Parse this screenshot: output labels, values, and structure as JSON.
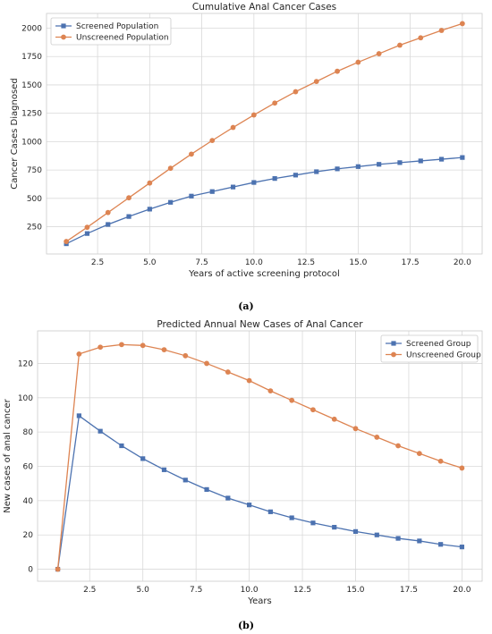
{
  "chart_data": [
    {
      "type": "line",
      "title": "Cumulative Anal Cancer Cases",
      "xlabel": "Years of active screening protocol",
      "ylabel": "Cancer Cases Diagnosed",
      "xlim": [
        0.05,
        20.95
      ],
      "ylim": [
        10,
        2130
      ],
      "xticks": [
        2.5,
        5.0,
        7.5,
        10.0,
        12.5,
        15.0,
        17.5,
        20.0
      ],
      "xtick_labels": [
        "2.5",
        "5.0",
        "7.5",
        "10.0",
        "12.5",
        "15.0",
        "17.5",
        "20.0"
      ],
      "yticks": [
        250,
        500,
        750,
        1000,
        1250,
        1500,
        1750,
        2000
      ],
      "ytick_labels": [
        "250",
        "500",
        "750",
        "1000",
        "1250",
        "1500",
        "1750",
        "2000"
      ],
      "grid": true,
      "legend_position": "top-left",
      "caption": "(a)",
      "x": [
        1,
        2,
        3,
        4,
        5,
        6,
        7,
        8,
        9,
        10,
        11,
        12,
        13,
        14,
        15,
        16,
        17,
        18,
        19,
        20
      ],
      "series": [
        {
          "name": "Screened Population",
          "color": "#4c72b0",
          "marker": "square",
          "values": [
            100,
            190,
            270,
            340,
            405,
            465,
            520,
            560,
            600,
            640,
            675,
            705,
            735,
            760,
            780,
            800,
            815,
            830,
            845,
            860
          ]
        },
        {
          "name": "Unscreened Population",
          "color": "#dd8452",
          "marker": "circle",
          "values": [
            120,
            245,
            375,
            505,
            635,
            765,
            890,
            1010,
            1125,
            1235,
            1340,
            1440,
            1530,
            1620,
            1700,
            1775,
            1850,
            1915,
            1980,
            2040
          ]
        }
      ]
    },
    {
      "type": "line",
      "title": "Predicted Annual New Cases of Anal Cancer",
      "xlabel": "Years",
      "ylabel": "New cases of anal cancer",
      "xlim": [
        0.05,
        20.95
      ],
      "ylim": [
        -7,
        139
      ],
      "xticks": [
        2.5,
        5.0,
        7.5,
        10.0,
        12.5,
        15.0,
        17.5,
        20.0
      ],
      "xtick_labels": [
        "2.5",
        "5.0",
        "7.5",
        "10.0",
        "12.5",
        "15.0",
        "17.5",
        "20.0"
      ],
      "yticks": [
        0,
        20,
        40,
        60,
        80,
        100,
        120
      ],
      "ytick_labels": [
        "0",
        "20",
        "40",
        "60",
        "80",
        "100",
        "120"
      ],
      "grid": true,
      "legend_position": "top-right",
      "caption": "(b)",
      "x": [
        1,
        2,
        3,
        4,
        5,
        6,
        7,
        8,
        9,
        10,
        11,
        12,
        13,
        14,
        15,
        16,
        17,
        18,
        19,
        20
      ],
      "series": [
        {
          "name": "Screened Group",
          "color": "#4c72b0",
          "marker": "square",
          "values": [
            0,
            89.5,
            80.5,
            72,
            64.5,
            58,
            52,
            46.5,
            41.5,
            37.5,
            33.5,
            30,
            27,
            24.5,
            22,
            20,
            18,
            16.5,
            14.5,
            13
          ]
        },
        {
          "name": "Unscreened Group",
          "color": "#dd8452",
          "marker": "circle",
          "values": [
            0,
            125.5,
            129.5,
            131,
            130.5,
            128,
            124.5,
            120,
            115,
            110,
            104,
            98.5,
            93,
            87.5,
            82,
            77,
            72,
            67.5,
            63,
            59
          ]
        }
      ]
    }
  ]
}
